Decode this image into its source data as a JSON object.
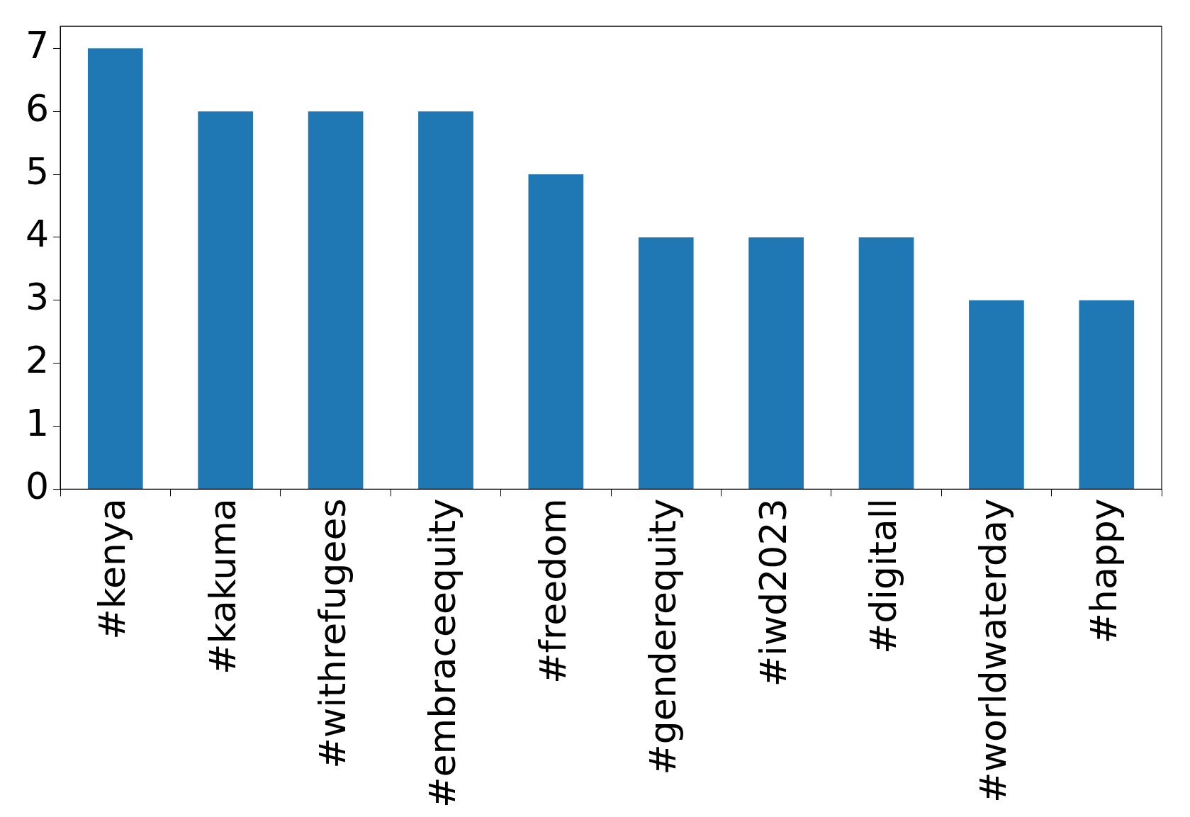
{
  "chart_data": {
    "type": "bar",
    "categories": [
      "#kenya",
      "#kakuma",
      "#withrefugees",
      "#embraceequity",
      "#freedom",
      "#genderequity",
      "#iwd2023",
      "#digitall",
      "#worldwaterday",
      "#happy"
    ],
    "values": [
      7,
      6,
      6,
      6,
      5,
      4,
      4,
      4,
      3,
      3
    ],
    "color": "#1f77b4",
    "ylim": [
      0,
      7.35
    ],
    "yticks": [
      0,
      1,
      2,
      3,
      4,
      5,
      6,
      7
    ],
    "grid": false,
    "legend": false
  }
}
